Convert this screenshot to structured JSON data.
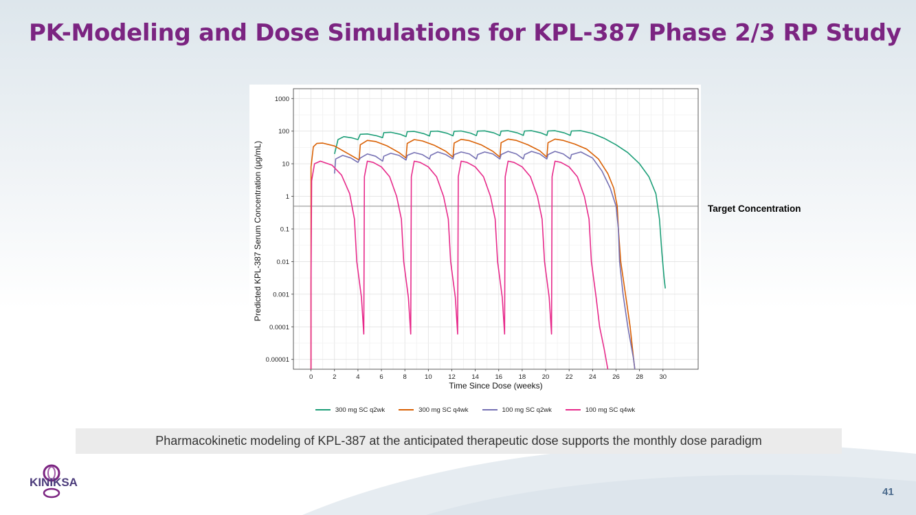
{
  "slide": {
    "title": "PK-Modeling and Dose Simulations for KPL-387 Phase 2/3 RP Study",
    "caption": "Pharmacokinetic modeling of KPL-387 at the anticipated therapeutic dose supports the monthly dose paradigm",
    "page_number": "41",
    "logo_text": "KINIKSA",
    "colors": {
      "title": "#7b2481",
      "caption_bg": "#ebebeb",
      "page_number": "#4a6a8c"
    }
  },
  "chart_data": {
    "type": "line",
    "title": "",
    "xlabel": "Time Since Dose (weeks)",
    "ylabel": "Predicted KPL-387 Serum Concentration (μg/mL)",
    "xlim": [
      -1.5,
      33
    ],
    "ylim": [
      5e-06,
      2000
    ],
    "y_scale": "log",
    "x_ticks": [
      0,
      2,
      4,
      6,
      8,
      10,
      12,
      14,
      16,
      18,
      20,
      22,
      24,
      26,
      28,
      30
    ],
    "y_ticks": [
      {
        "value": 1000,
        "label": "1000"
      },
      {
        "value": 100,
        "label": "100"
      },
      {
        "value": 10,
        "label": "10"
      },
      {
        "value": 1,
        "label": "1"
      },
      {
        "value": 0.1,
        "label": "0.1"
      },
      {
        "value": 0.01,
        "label": "0.01"
      },
      {
        "value": 0.001,
        "label": "0.001"
      },
      {
        "value": 0.0001,
        "label": "0.0001"
      },
      {
        "value": 1e-05,
        "label": "0.00001"
      }
    ],
    "grid": true,
    "legend_position": "bottom",
    "reference_line": {
      "value": 0.5,
      "label": "Target Concentration",
      "color": "#888888"
    },
    "series": [
      {
        "name": "300 mg SC q2wk",
        "color": "#1b9e77",
        "points": [
          [
            2,
            20
          ],
          [
            2.3,
            55
          ],
          [
            2.8,
            68
          ],
          [
            3.5,
            62
          ],
          [
            4,
            55
          ],
          [
            4.2,
            80
          ],
          [
            4.8,
            82
          ],
          [
            5.6,
            72
          ],
          [
            6.1,
            63
          ],
          [
            6.2,
            90
          ],
          [
            6.8,
            92
          ],
          [
            7.6,
            80
          ],
          [
            8.1,
            68
          ],
          [
            8.2,
            96
          ],
          [
            8.8,
            98
          ],
          [
            9.6,
            84
          ],
          [
            10.1,
            71
          ],
          [
            10.2,
            98
          ],
          [
            10.8,
            100
          ],
          [
            11.6,
            86
          ],
          [
            12.1,
            72
          ],
          [
            12.2,
            99
          ],
          [
            12.8,
            101
          ],
          [
            13.6,
            87
          ],
          [
            14.1,
            73
          ],
          [
            14.2,
            100
          ],
          [
            14.8,
            102
          ],
          [
            15.6,
            88
          ],
          [
            16.1,
            73
          ],
          [
            16.2,
            100
          ],
          [
            16.8,
            103
          ],
          [
            17.6,
            88
          ],
          [
            18.1,
            74
          ],
          [
            18.2,
            101
          ],
          [
            18.8,
            103
          ],
          [
            19.6,
            88
          ],
          [
            20.1,
            74
          ],
          [
            20.2,
            101
          ],
          [
            20.8,
            103
          ],
          [
            21.6,
            88
          ],
          [
            22.1,
            74
          ],
          [
            22.2,
            101
          ],
          [
            23,
            103
          ],
          [
            24,
            85
          ],
          [
            25,
            60
          ],
          [
            26,
            38
          ],
          [
            27,
            22
          ],
          [
            28,
            10
          ],
          [
            28.8,
            4
          ],
          [
            29.4,
            1.2
          ],
          [
            29.7,
            0.2
          ],
          [
            29.9,
            0.02
          ],
          [
            30.1,
            0.003
          ],
          [
            30.2,
            0.0015
          ]
        ]
      },
      {
        "name": "300 mg SC q4wk",
        "color": "#d95f02",
        "points": [
          [
            0,
            0.0
          ],
          [
            0,
            8
          ],
          [
            0.2,
            33
          ],
          [
            0.5,
            42
          ],
          [
            1,
            43
          ],
          [
            2,
            35
          ],
          [
            3,
            22
          ],
          [
            4.1,
            13
          ],
          [
            4.2,
            38
          ],
          [
            4.8,
            52
          ],
          [
            5.5,
            48
          ],
          [
            6.5,
            35
          ],
          [
            7.5,
            22
          ],
          [
            8.1,
            15
          ],
          [
            8.2,
            42
          ],
          [
            8.8,
            55
          ],
          [
            9.5,
            50
          ],
          [
            10.5,
            37
          ],
          [
            11.5,
            24
          ],
          [
            12.1,
            16
          ],
          [
            12.2,
            43
          ],
          [
            12.8,
            56
          ],
          [
            13.5,
            51
          ],
          [
            14.5,
            38
          ],
          [
            15.5,
            24
          ],
          [
            16.1,
            16
          ],
          [
            16.2,
            44
          ],
          [
            16.8,
            57
          ],
          [
            17.5,
            52
          ],
          [
            18.5,
            38
          ],
          [
            19.5,
            25
          ],
          [
            20.1,
            16
          ],
          [
            20.2,
            44
          ],
          [
            20.8,
            57
          ],
          [
            21.5,
            52
          ],
          [
            22.5,
            40
          ],
          [
            23.5,
            28
          ],
          [
            24.5,
            14
          ],
          [
            25.3,
            5
          ],
          [
            25.8,
            1.8
          ],
          [
            26.1,
            0.5
          ],
          [
            26.2,
            0.1
          ],
          [
            26.4,
            0.01
          ],
          [
            26.8,
            0.001
          ],
          [
            27.2,
            0.0001
          ],
          [
            27.5,
            1e-05
          ],
          [
            27.6,
            5e-06
          ]
        ]
      },
      {
        "name": "100 mg SC q2wk",
        "color": "#7570b3",
        "points": [
          [
            2,
            5
          ],
          [
            2.1,
            14
          ],
          [
            2.7,
            18
          ],
          [
            3.4,
            15
          ],
          [
            4,
            11
          ],
          [
            4.2,
            15
          ],
          [
            4.8,
            20
          ],
          [
            5.5,
            17
          ],
          [
            6.1,
            12
          ],
          [
            6.2,
            17
          ],
          [
            6.8,
            21
          ],
          [
            7.5,
            18
          ],
          [
            8.1,
            13
          ],
          [
            8.2,
            18
          ],
          [
            8.8,
            22
          ],
          [
            9.5,
            19
          ],
          [
            10.1,
            14
          ],
          [
            10.2,
            18
          ],
          [
            10.8,
            23
          ],
          [
            11.5,
            19
          ],
          [
            12.1,
            14
          ],
          [
            12.2,
            19
          ],
          [
            12.8,
            23
          ],
          [
            13.5,
            20
          ],
          [
            14.1,
            14
          ],
          [
            14.2,
            19
          ],
          [
            14.8,
            23
          ],
          [
            15.5,
            20
          ],
          [
            16.1,
            14
          ],
          [
            16.2,
            19
          ],
          [
            16.8,
            24
          ],
          [
            17.5,
            20
          ],
          [
            18.1,
            14
          ],
          [
            18.2,
            19
          ],
          [
            18.8,
            24
          ],
          [
            19.5,
            20
          ],
          [
            20.1,
            14
          ],
          [
            20.2,
            19
          ],
          [
            20.8,
            24
          ],
          [
            21.5,
            20
          ],
          [
            22.1,
            14
          ],
          [
            22.2,
            19
          ],
          [
            23,
            23
          ],
          [
            24,
            15
          ],
          [
            24.8,
            6
          ],
          [
            25.5,
            1.8
          ],
          [
            26,
            0.5
          ],
          [
            26.2,
            0.1
          ],
          [
            26.3,
            0.01
          ],
          [
            26.6,
            0.001
          ],
          [
            27,
            0.0001
          ],
          [
            27.5,
            1e-05
          ],
          [
            27.6,
            5e-06
          ]
        ]
      },
      {
        "name": "100 mg SC q4wk",
        "color": "#e7298a",
        "points": [
          [
            0,
            5e-06
          ],
          [
            0,
            0.002
          ],
          [
            0.05,
            3
          ],
          [
            0.3,
            10
          ],
          [
            0.8,
            12
          ],
          [
            1.8,
            9
          ],
          [
            2.6,
            4.5
          ],
          [
            3.3,
            1.2
          ],
          [
            3.7,
            0.2
          ],
          [
            3.9,
            0.01
          ],
          [
            4.3,
            0.0008
          ],
          [
            4.5,
            6e-05
          ],
          [
            4.55,
            4
          ],
          [
            4.8,
            12
          ],
          [
            5.3,
            11
          ],
          [
            6,
            8
          ],
          [
            6.7,
            4
          ],
          [
            7.3,
            1
          ],
          [
            7.7,
            0.2
          ],
          [
            7.9,
            0.01
          ],
          [
            8.3,
            0.0008
          ],
          [
            8.5,
            6e-05
          ],
          [
            8.55,
            4
          ],
          [
            8.8,
            12
          ],
          [
            9.3,
            11
          ],
          [
            10,
            8
          ],
          [
            10.7,
            4
          ],
          [
            11.3,
            1
          ],
          [
            11.7,
            0.2
          ],
          [
            11.9,
            0.01
          ],
          [
            12.3,
            0.0008
          ],
          [
            12.5,
            6e-05
          ],
          [
            12.55,
            4
          ],
          [
            12.8,
            12
          ],
          [
            13.3,
            11
          ],
          [
            14,
            8
          ],
          [
            14.7,
            4
          ],
          [
            15.3,
            1
          ],
          [
            15.7,
            0.2
          ],
          [
            15.9,
            0.01
          ],
          [
            16.3,
            0.0008
          ],
          [
            16.5,
            6e-05
          ],
          [
            16.55,
            4
          ],
          [
            16.8,
            12
          ],
          [
            17.3,
            11
          ],
          [
            18,
            8
          ],
          [
            18.7,
            4
          ],
          [
            19.3,
            1
          ],
          [
            19.7,
            0.2
          ],
          [
            19.9,
            0.01
          ],
          [
            20.3,
            0.0008
          ],
          [
            20.5,
            6e-05
          ],
          [
            20.55,
            4
          ],
          [
            20.8,
            12
          ],
          [
            21.3,
            11
          ],
          [
            22,
            8
          ],
          [
            22.7,
            4
          ],
          [
            23.3,
            1
          ],
          [
            23.7,
            0.2
          ],
          [
            23.9,
            0.01
          ],
          [
            24.3,
            0.0008
          ],
          [
            24.6,
            0.0001
          ],
          [
            25,
            2e-05
          ],
          [
            25.3,
            5e-06
          ]
        ]
      }
    ]
  }
}
